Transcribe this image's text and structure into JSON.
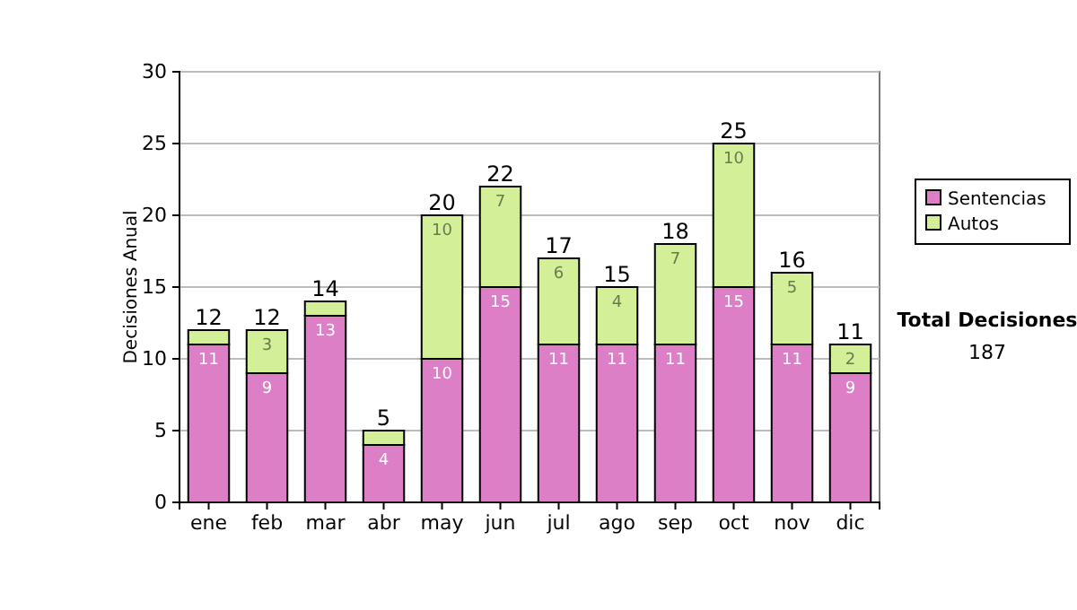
{
  "chart_data": {
    "type": "bar",
    "ylabel": "Decisiones Anual",
    "categories": [
      "ene",
      "feb",
      "mar",
      "abr",
      "may",
      "jun",
      "jul",
      "ago",
      "sep",
      "oct",
      "nov",
      "dic"
    ],
    "stacked": true,
    "ylim": [
      0,
      30
    ],
    "yticks": [
      0,
      5,
      10,
      15,
      20,
      25,
      30
    ],
    "grid": "y",
    "legend": "right",
    "series": [
      {
        "name": "Sentencias",
        "color": "#dd7fc6",
        "values": [
          11,
          9,
          13,
          4,
          10,
          15,
          11,
          11,
          11,
          15,
          11,
          9
        ],
        "value_labels": [
          "11",
          "9",
          "13",
          "4",
          "10",
          "15",
          "11",
          "11",
          "11",
          "15",
          "11",
          "9"
        ]
      },
      {
        "name": "Autos",
        "color": "#d3ef97",
        "values": [
          1,
          3,
          1,
          1,
          10,
          7,
          6,
          4,
          7,
          10,
          5,
          2
        ],
        "value_labels": [
          null,
          "3",
          null,
          null,
          "10",
          "7",
          "6",
          "4",
          "7",
          "10",
          "5",
          "2"
        ]
      }
    ],
    "totals": [
      "12",
      "12",
      "14",
      "5",
      "20",
      "22",
      "17",
      "15",
      "18",
      "25",
      "16",
      "11"
    ],
    "annotations": [
      "Total Decisiones",
      "187"
    ]
  }
}
